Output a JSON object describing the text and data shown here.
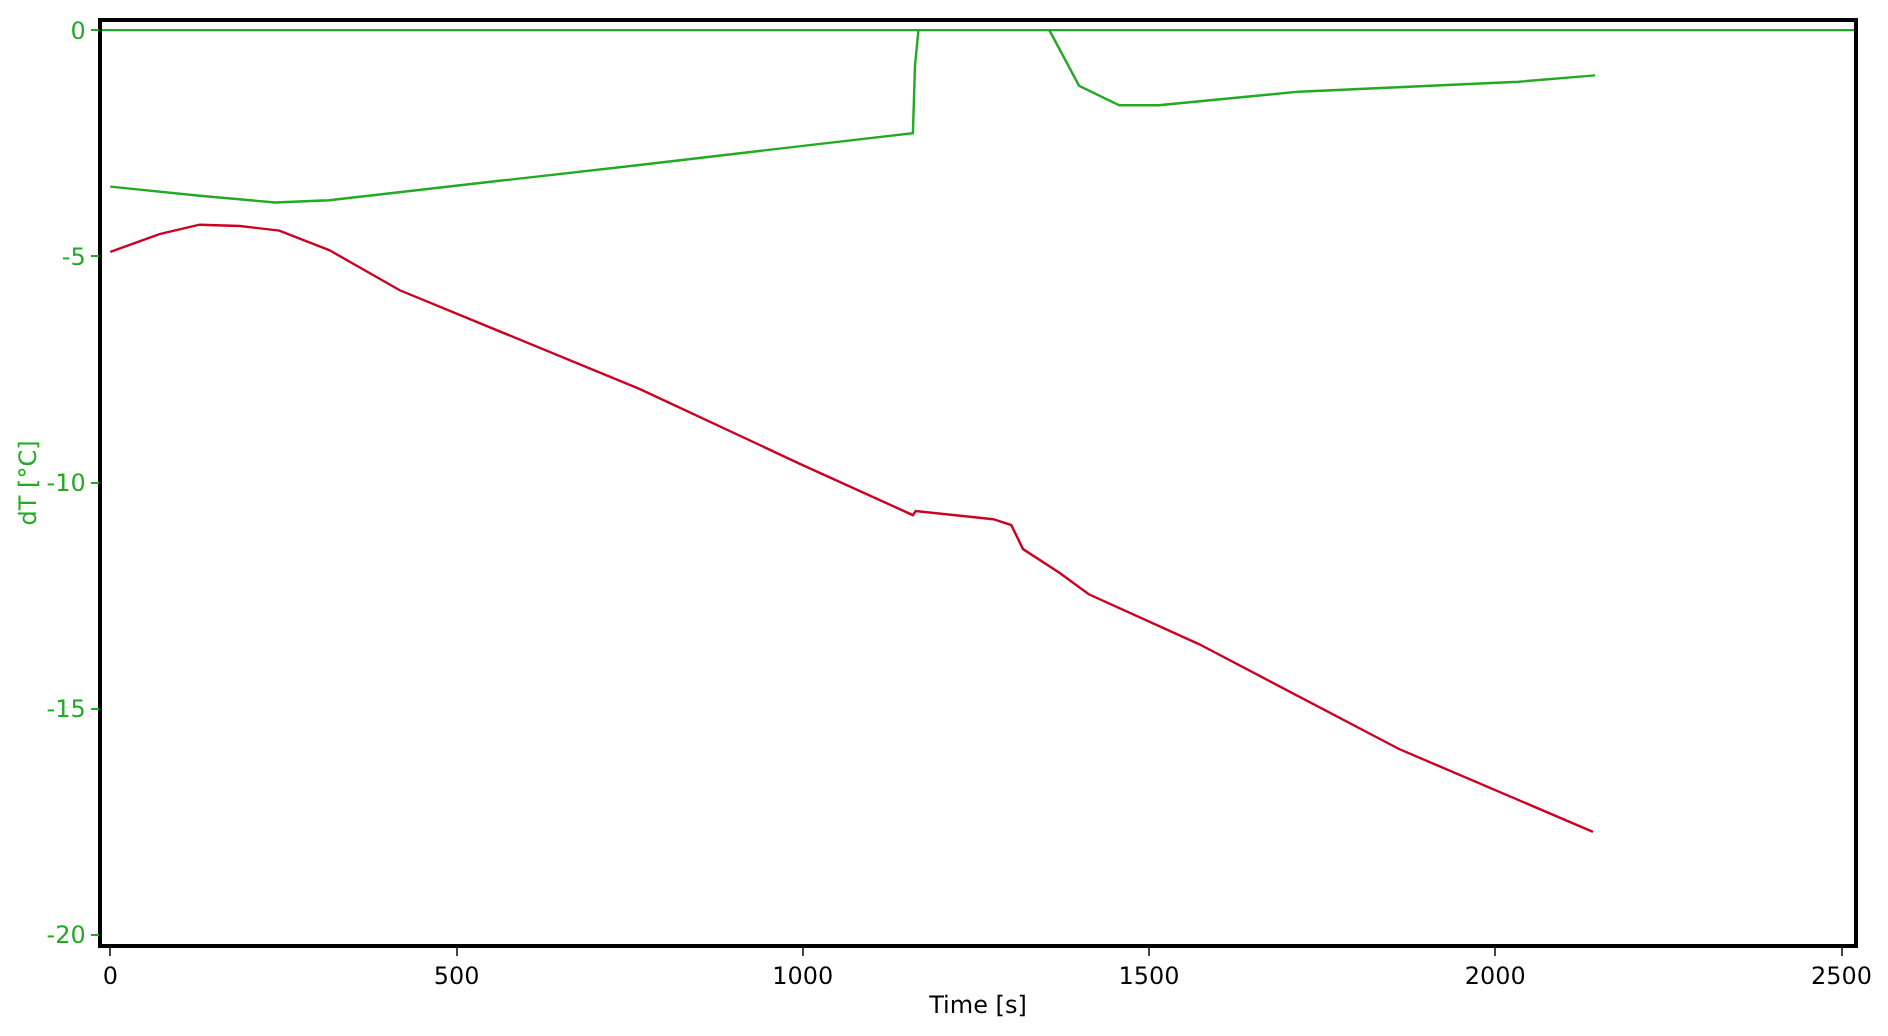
{
  "chart_data": {
    "type": "line",
    "xlabel": "Time [s]",
    "ylabel": "dT [°C]",
    "xlim": [
      -12,
      2518
    ],
    "xticks": [
      0,
      500,
      1000,
      1500,
      2000,
      2500
    ],
    "ylim": [
      -20.2,
      0.18
    ],
    "yticks": [
      -20,
      -15,
      -10,
      -5,
      0
    ],
    "marker": "none",
    "line_style": "solid",
    "ref_lines": [
      {
        "axis": "y",
        "value": 0,
        "color": "#22aa22"
      }
    ],
    "series": [
      {
        "color": "#22aa22",
        "x": [
          0,
          129,
          238,
          316,
          562,
          764,
          937,
          1159,
          1162,
          1167,
          null,
          1356,
          1399,
          1457,
          1514,
          1716,
          2034,
          2144
        ],
        "values": [
          -3.46,
          -3.66,
          -3.81,
          -3.76,
          -3.33,
          -2.98,
          -2.67,
          -2.28,
          -0.79,
          0,
          null,
          0,
          -1.23,
          -1.66,
          -1.66,
          -1.36,
          -1.14,
          -1.0
        ]
      },
      {
        "color": "#cc0022",
        "x": [
          0,
          71,
          129,
          187,
          244,
          316,
          418,
          764,
          995,
          1159,
          1163,
          1275,
          1301,
          1318,
          1370,
          1413,
          1572,
          1861,
          2141
        ],
        "values": [
          -4.9,
          -4.51,
          -4.3,
          -4.33,
          -4.43,
          -4.86,
          -5.75,
          -7.93,
          -9.58,
          -10.72,
          -10.63,
          -10.81,
          -10.94,
          -11.47,
          -11.99,
          -12.47,
          -13.57,
          -15.89,
          -17.72
        ]
      }
    ]
  }
}
